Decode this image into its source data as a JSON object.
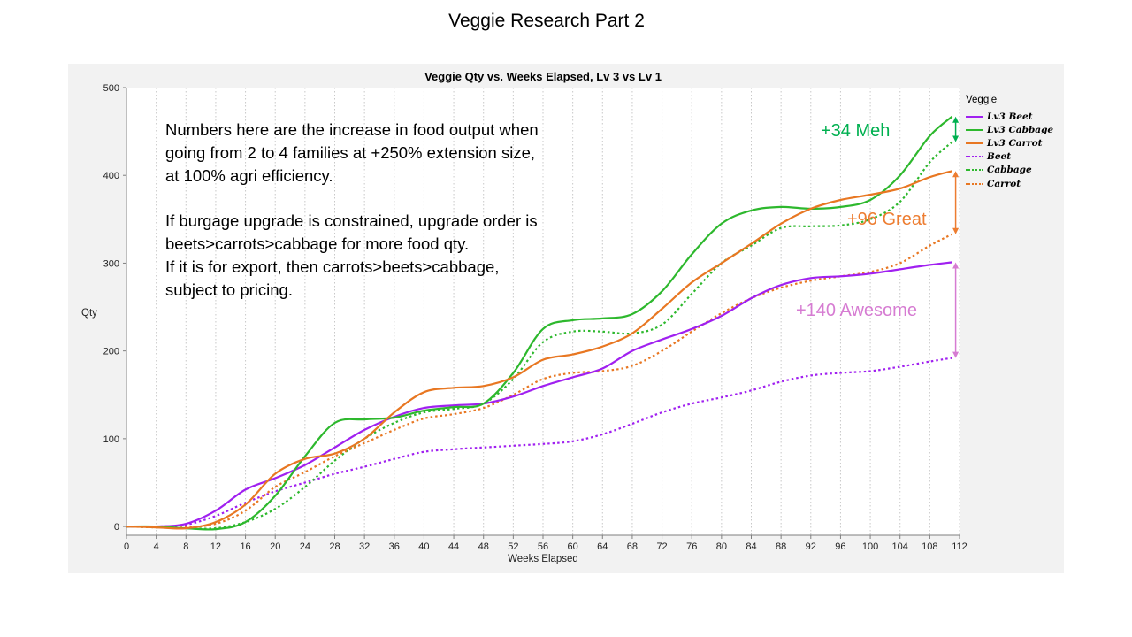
{
  "page_title": "Veggie Research Part 2",
  "note": {
    "para1": [
      "Numbers here are the increase in food output when",
      "going from 2 to 4 families at +250% extension size,",
      "at 100% agri efficiency."
    ],
    "para2": [
      "If burgage upgrade is constrained, upgrade order is",
      "beets>carrots>cabbage for more food qty.",
      "If it is for export, then carrots>beets>cabbage,",
      "subject to pricing."
    ]
  },
  "callouts": {
    "cabbage": {
      "text": "+34 Meh",
      "color": "#00b050"
    },
    "carrot": {
      "text": "+96 Great",
      "color": "#ed7d31"
    },
    "beet": {
      "text": "+140 Awesome",
      "color": "#d67cd2"
    }
  },
  "legend_title": "Veggie",
  "chart_data": {
    "type": "line",
    "title": "Veggie Qty vs. Weeks Elapsed, Lv 3 vs Lv 1",
    "xlabel": "Weeks Elapsed",
    "ylabel": "Qty",
    "xlim": [
      0,
      112
    ],
    "ylim": [
      -10,
      500
    ],
    "xticks": [
      0,
      4,
      8,
      12,
      16,
      20,
      24,
      28,
      32,
      36,
      40,
      44,
      48,
      52,
      56,
      60,
      64,
      68,
      72,
      76,
      80,
      84,
      88,
      92,
      96,
      100,
      104,
      108,
      112
    ],
    "yticks": [
      0,
      100,
      200,
      300,
      400,
      500
    ],
    "legend_position": "right",
    "series": [
      {
        "name": "Lv3 Beet",
        "color": "#a020f0",
        "dash": false,
        "x": [
          0,
          4,
          8,
          12,
          16,
          20,
          24,
          28,
          32,
          36,
          40,
          44,
          48,
          52,
          56,
          60,
          64,
          68,
          72,
          76,
          80,
          84,
          88,
          92,
          96,
          100,
          104,
          108,
          111
        ],
        "y": [
          0,
          0,
          3,
          18,
          42,
          55,
          70,
          90,
          110,
          125,
          135,
          138,
          140,
          148,
          160,
          170,
          180,
          200,
          213,
          225,
          240,
          260,
          275,
          283,
          285,
          288,
          293,
          298,
          301
        ]
      },
      {
        "name": "Lv3 Cabbage",
        "color": "#2db82d",
        "dash": false,
        "x": [
          0,
          4,
          8,
          12,
          16,
          20,
          24,
          28,
          32,
          36,
          40,
          44,
          48,
          52,
          56,
          60,
          64,
          68,
          72,
          76,
          80,
          84,
          88,
          92,
          96,
          100,
          104,
          108,
          111
        ],
        "y": [
          0,
          0,
          -2,
          -3,
          5,
          35,
          80,
          118,
          122,
          124,
          132,
          136,
          140,
          175,
          225,
          235,
          237,
          242,
          268,
          310,
          345,
          360,
          364,
          362,
          364,
          372,
          400,
          445,
          467
        ]
      },
      {
        "name": "Lv3 Carrot",
        "color": "#e87722",
        "dash": false,
        "x": [
          0,
          4,
          8,
          12,
          16,
          20,
          24,
          28,
          32,
          36,
          40,
          44,
          48,
          52,
          56,
          60,
          64,
          68,
          72,
          76,
          80,
          84,
          88,
          92,
          96,
          100,
          104,
          108,
          111
        ],
        "y": [
          0,
          -1,
          -2,
          5,
          25,
          60,
          77,
          83,
          100,
          130,
          153,
          158,
          160,
          170,
          190,
          196,
          205,
          220,
          248,
          278,
          300,
          322,
          345,
          362,
          372,
          378,
          385,
          398,
          405
        ]
      },
      {
        "name": "Beet",
        "color": "#a020f0",
        "dash": true,
        "x": [
          0,
          4,
          8,
          12,
          16,
          20,
          24,
          28,
          32,
          36,
          40,
          44,
          48,
          52,
          56,
          60,
          64,
          68,
          72,
          76,
          80,
          84,
          88,
          92,
          96,
          100,
          104,
          108,
          111
        ],
        "y": [
          0,
          0,
          2,
          12,
          27,
          40,
          50,
          60,
          68,
          77,
          85,
          88,
          90,
          92,
          94,
          97,
          105,
          117,
          130,
          140,
          147,
          155,
          165,
          172,
          175,
          177,
          182,
          188,
          192
        ]
      },
      {
        "name": "Cabbage",
        "color": "#2db82d",
        "dash": true,
        "x": [
          0,
          4,
          8,
          12,
          16,
          20,
          24,
          28,
          32,
          36,
          40,
          44,
          48,
          52,
          56,
          60,
          64,
          68,
          72,
          76,
          80,
          84,
          88,
          92,
          96,
          100,
          104,
          108,
          111
        ],
        "y": [
          0,
          -1,
          -2,
          -2,
          5,
          20,
          45,
          75,
          100,
          118,
          130,
          134,
          140,
          168,
          210,
          222,
          222,
          220,
          230,
          265,
          300,
          320,
          340,
          342,
          343,
          350,
          370,
          415,
          438
        ]
      },
      {
        "name": "Carrot",
        "color": "#e87722",
        "dash": true,
        "x": [
          0,
          4,
          8,
          12,
          16,
          20,
          24,
          28,
          32,
          36,
          40,
          44,
          48,
          52,
          56,
          60,
          64,
          68,
          72,
          76,
          80,
          84,
          88,
          92,
          96,
          100,
          104,
          108,
          111
        ],
        "y": [
          0,
          -1,
          -1,
          3,
          18,
          45,
          62,
          80,
          95,
          110,
          123,
          128,
          135,
          150,
          168,
          175,
          177,
          183,
          200,
          222,
          243,
          260,
          272,
          280,
          285,
          290,
          300,
          320,
          333
        ]
      }
    ],
    "annotations": [
      {
        "text": "+34 Meh",
        "x": 111,
        "y_from": 438,
        "y_to": 467
      },
      {
        "text": "+96 Great",
        "x": 111,
        "y_from": 333,
        "y_to": 405
      },
      {
        "text": "+140 Awesome",
        "x": 111,
        "y_from": 192,
        "y_to": 301
      }
    ]
  }
}
